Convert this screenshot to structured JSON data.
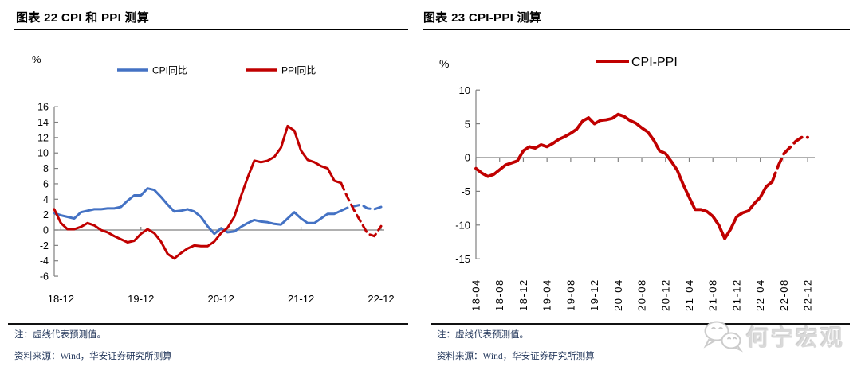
{
  "left_panel": {
    "title": "图表 22 CPI 和 PPI 测算",
    "unit_label": "%",
    "note": "注：虚线代表预测值。",
    "source": "资料来源：Wind，华安证券研究所测算"
  },
  "right_panel": {
    "title": "图表 23 CPI-PPI 测算",
    "unit_label": "%",
    "note": "注：虚线代表预测值。",
    "source": "资料来源：Wind，华安证券研究所测算"
  },
  "watermark": {
    "text": "何宁宏观",
    "icon": "wechat-icon",
    "color": "#d9d9d9"
  },
  "colors": {
    "cpi_blue": "#4472C4",
    "ppi_red": "#C00000",
    "axis_gray": "#808080",
    "zero_line_gray": "#808080",
    "tick_text": "#000000",
    "note_navy": "#24385c"
  },
  "chart_data": [
    {
      "type": "line",
      "title": "图表 22 CPI 和 PPI 测算",
      "ylabel": "%",
      "ylim": [
        -6,
        16
      ],
      "y_ticks": [
        16,
        14,
        12,
        10,
        8,
        6,
        4,
        2,
        0,
        -2,
        -4,
        -6
      ],
      "x_tick_labels": [
        "18-12",
        "19-12",
        "20-12",
        "21-12",
        "22-12"
      ],
      "note": "虚线代表预测值",
      "legend_position": "top",
      "grid": false,
      "x": [
        "2018-11",
        "2018-12",
        "2019-01",
        "2019-02",
        "2019-03",
        "2019-04",
        "2019-05",
        "2019-06",
        "2019-07",
        "2019-08",
        "2019-09",
        "2019-10",
        "2019-11",
        "2019-12",
        "2020-01",
        "2020-02",
        "2020-03",
        "2020-04",
        "2020-05",
        "2020-06",
        "2020-07",
        "2020-08",
        "2020-09",
        "2020-10",
        "2020-11",
        "2020-12",
        "2021-01",
        "2021-02",
        "2021-03",
        "2021-04",
        "2021-05",
        "2021-06",
        "2021-07",
        "2021-08",
        "2021-09",
        "2021-10",
        "2021-11",
        "2021-12",
        "2022-01",
        "2022-02",
        "2022-03",
        "2022-04",
        "2022-05",
        "2022-06",
        "2022-07",
        "2022-08",
        "2022-09",
        "2022-10",
        "2022-11",
        "2022-12"
      ],
      "forecast_from_index": 44,
      "series": [
        {
          "name": "CPI同比",
          "color": "#4472C4",
          "values": [
            2.2,
            1.9,
            1.7,
            1.5,
            2.3,
            2.5,
            2.7,
            2.7,
            2.8,
            2.8,
            3.0,
            3.8,
            4.5,
            4.5,
            5.4,
            5.2,
            4.3,
            3.3,
            2.4,
            2.5,
            2.7,
            2.4,
            1.7,
            0.5,
            -0.5,
            0.2,
            -0.3,
            -0.2,
            0.4,
            0.9,
            1.3,
            1.1,
            1.0,
            0.8,
            0.7,
            1.5,
            2.3,
            1.5,
            0.9,
            0.9,
            1.5,
            2.1,
            2.1,
            2.5,
            2.9,
            3.1,
            3.3,
            2.8,
            2.7,
            3.0
          ]
        },
        {
          "name": "PPI同比",
          "color": "#C00000",
          "values": [
            2.7,
            0.9,
            0.1,
            0.1,
            0.4,
            0.9,
            0.6,
            0.0,
            -0.3,
            -0.8,
            -1.2,
            -1.6,
            -1.4,
            -0.5,
            0.1,
            -0.4,
            -1.5,
            -3.1,
            -3.7,
            -3.0,
            -2.4,
            -2.0,
            -2.1,
            -2.1,
            -1.5,
            -0.4,
            0.3,
            1.7,
            4.4,
            6.8,
            9.0,
            8.8,
            9.0,
            9.5,
            10.7,
            13.5,
            12.9,
            10.3,
            9.1,
            8.8,
            8.3,
            8.0,
            6.4,
            6.1,
            4.2,
            2.5,
            1.0,
            -0.5,
            -0.8,
            0.5
          ]
        }
      ]
    },
    {
      "type": "line",
      "title": "图表 23 CPI-PPI 测算",
      "ylabel": "%",
      "ylim": [
        -15,
        10
      ],
      "y_ticks": [
        10,
        5,
        0,
        -5,
        -10,
        -15
      ],
      "x_tick_labels": [
        "18-04",
        "18-08",
        "18-12",
        "19-04",
        "19-08",
        "19-12",
        "20-04",
        "20-08",
        "20-12",
        "21-04",
        "21-08",
        "21-12",
        "22-04",
        "22-08",
        "22-12"
      ],
      "note": "虚线代表预测值",
      "legend_position": "top",
      "grid": false,
      "x": [
        "2018-04",
        "2018-05",
        "2018-06",
        "2018-07",
        "2018-08",
        "2018-09",
        "2018-10",
        "2018-11",
        "2018-12",
        "2019-01",
        "2019-02",
        "2019-03",
        "2019-04",
        "2019-05",
        "2019-06",
        "2019-07",
        "2019-08",
        "2019-09",
        "2019-10",
        "2019-11",
        "2019-12",
        "2020-01",
        "2020-02",
        "2020-03",
        "2020-04",
        "2020-05",
        "2020-06",
        "2020-07",
        "2020-08",
        "2020-09",
        "2020-10",
        "2020-11",
        "2020-12",
        "2021-01",
        "2021-02",
        "2021-03",
        "2021-04",
        "2021-05",
        "2021-06",
        "2021-07",
        "2021-08",
        "2021-09",
        "2021-10",
        "2021-11",
        "2021-12",
        "2022-01",
        "2022-02",
        "2022-03",
        "2022-04",
        "2022-05",
        "2022-06",
        "2022-07",
        "2022-08",
        "2022-09",
        "2022-10",
        "2022-11",
        "2022-12"
      ],
      "forecast_from_index": 51,
      "series": [
        {
          "name": "CPI-PPI",
          "color": "#C00000",
          "values": [
            -1.6,
            -2.3,
            -2.8,
            -2.5,
            -1.8,
            -1.1,
            -0.8,
            -0.5,
            1.0,
            1.6,
            1.4,
            1.9,
            1.6,
            2.1,
            2.7,
            3.1,
            3.6,
            4.2,
            5.4,
            5.9,
            5.0,
            5.5,
            5.6,
            5.8,
            6.4,
            6.1,
            5.5,
            5.1,
            4.4,
            3.8,
            2.6,
            1.0,
            0.6,
            -0.6,
            -1.9,
            -4.0,
            -5.9,
            -7.7,
            -7.7,
            -8.0,
            -8.7,
            -10.0,
            -12.0,
            -10.6,
            -8.8,
            -8.2,
            -7.9,
            -6.8,
            -5.9,
            -4.3,
            -3.6,
            -1.3,
            0.6,
            1.5,
            2.4,
            3.0,
            3.0
          ]
        }
      ]
    }
  ]
}
